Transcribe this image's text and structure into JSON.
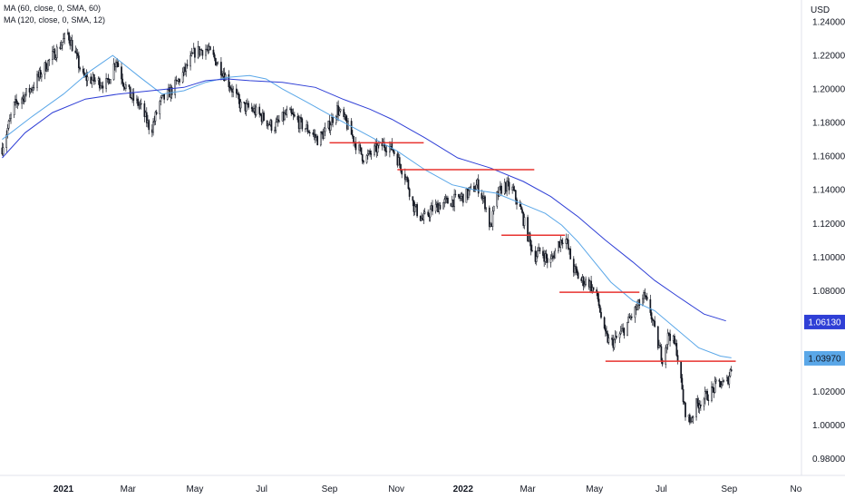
{
  "chart_data": {
    "type": "candlestick",
    "title": "",
    "currency": "USD",
    "legend": [
      {
        "label": "MA (60, close, 0, SMA, 60)",
        "color": "#5aa7e8"
      },
      {
        "label": "MA (120, close, 0, SMA, 12)",
        "color": "#2f3fd6"
      }
    ],
    "y_ticks": [
      "1.24000",
      "1.22000",
      "1.20000",
      "1.18000",
      "1.16000",
      "1.14000",
      "1.12000",
      "1.10000",
      "1.08000",
      "1.06000",
      "1.04000",
      "1.02000",
      "1.00000",
      "0.98000"
    ],
    "ylim": [
      0.97,
      1.253
    ],
    "x_ticks": [
      {
        "label": "2021",
        "bold": true,
        "t": 0
      },
      {
        "label": "Mar",
        "bold": false,
        "t": 59
      },
      {
        "label": "May",
        "bold": false,
        "t": 120
      },
      {
        "label": "Jul",
        "bold": false,
        "t": 181
      },
      {
        "label": "Sep",
        "bold": false,
        "t": 243
      },
      {
        "label": "Nov",
        "bold": false,
        "t": 304
      },
      {
        "label": "2022",
        "bold": true,
        "t": 365
      },
      {
        "label": "Mar",
        "bold": false,
        "t": 424
      },
      {
        "label": "May",
        "bold": false,
        "t": 485
      },
      {
        "label": "Jul",
        "bold": false,
        "t": 546
      },
      {
        "label": "Sep",
        "bold": false,
        "t": 608
      },
      {
        "label": "No",
        "bold": false,
        "t": 669
      }
    ],
    "price_path": [
      [
        -56,
        1.165
      ],
      [
        -45,
        1.19
      ],
      [
        -30,
        1.2
      ],
      [
        -15,
        1.215
      ],
      [
        -4,
        1.225
      ],
      [
        4,
        1.233
      ],
      [
        10,
        1.222
      ],
      [
        18,
        1.207
      ],
      [
        28,
        1.205
      ],
      [
        40,
        1.203
      ],
      [
        48,
        1.218
      ],
      [
        55,
        1.204
      ],
      [
        62,
        1.195
      ],
      [
        70,
        1.19
      ],
      [
        80,
        1.175
      ],
      [
        88,
        1.192
      ],
      [
        100,
        1.2
      ],
      [
        110,
        1.21
      ],
      [
        120,
        1.222
      ],
      [
        130,
        1.224
      ],
      [
        138,
        1.218
      ],
      [
        146,
        1.21
      ],
      [
        154,
        1.2
      ],
      [
        162,
        1.19
      ],
      [
        172,
        1.188
      ],
      [
        182,
        1.183
      ],
      [
        192,
        1.177
      ],
      [
        205,
        1.186
      ],
      [
        215,
        1.18
      ],
      [
        225,
        1.175
      ],
      [
        232,
        1.17
      ],
      [
        240,
        1.175
      ],
      [
        250,
        1.188
      ],
      [
        258,
        1.18
      ],
      [
        268,
        1.166
      ],
      [
        275,
        1.158
      ],
      [
        283,
        1.163
      ],
      [
        292,
        1.167
      ],
      [
        300,
        1.165
      ],
      [
        306,
        1.157
      ],
      [
        313,
        1.147
      ],
      [
        320,
        1.13
      ],
      [
        328,
        1.122
      ],
      [
        336,
        1.128
      ],
      [
        346,
        1.132
      ],
      [
        358,
        1.134
      ],
      [
        368,
        1.137
      ],
      [
        378,
        1.143
      ],
      [
        385,
        1.132
      ],
      [
        390,
        1.117
      ],
      [
        395,
        1.135
      ],
      [
        402,
        1.143
      ],
      [
        410,
        1.14
      ],
      [
        418,
        1.127
      ],
      [
        424,
        1.113
      ],
      [
        430,
        1.1
      ],
      [
        436,
        1.104
      ],
      [
        444,
        1.096
      ],
      [
        452,
        1.108
      ],
      [
        458,
        1.113
      ],
      [
        465,
        1.094
      ],
      [
        472,
        1.086
      ],
      [
        480,
        1.085
      ],
      [
        488,
        1.075
      ],
      [
        494,
        1.054
      ],
      [
        500,
        1.048
      ],
      [
        506,
        1.052
      ],
      [
        512,
        1.057
      ],
      [
        518,
        1.064
      ],
      [
        524,
        1.07
      ],
      [
        530,
        1.076
      ],
      [
        536,
        1.068
      ],
      [
        541,
        1.052
      ],
      [
        547,
        1.04
      ],
      [
        553,
        1.055
      ],
      [
        560,
        1.045
      ],
      [
        567,
        1.01
      ],
      [
        572,
        1.002
      ],
      [
        578,
        1.012
      ],
      [
        585,
        1.016
      ],
      [
        592,
        1.02
      ],
      [
        598,
        1.025
      ],
      [
        605,
        1.024
      ],
      [
        610,
        1.034
      ]
    ],
    "ma60_path": [
      [
        -56,
        1.17
      ],
      [
        -30,
        1.183
      ],
      [
        0,
        1.197
      ],
      [
        25,
        1.211
      ],
      [
        45,
        1.22
      ],
      [
        70,
        1.207
      ],
      [
        90,
        1.197
      ],
      [
        110,
        1.199
      ],
      [
        130,
        1.204
      ],
      [
        150,
        1.207
      ],
      [
        170,
        1.208
      ],
      [
        185,
        1.206
      ],
      [
        200,
        1.2
      ],
      [
        220,
        1.193
      ],
      [
        245,
        1.184
      ],
      [
        265,
        1.177
      ],
      [
        285,
        1.17
      ],
      [
        305,
        1.163
      ],
      [
        330,
        1.152
      ],
      [
        355,
        1.143
      ],
      [
        375,
        1.14
      ],
      [
        395,
        1.138
      ],
      [
        410,
        1.134
      ],
      [
        425,
        1.13
      ],
      [
        440,
        1.126
      ],
      [
        455,
        1.119
      ],
      [
        470,
        1.109
      ],
      [
        485,
        1.097
      ],
      [
        500,
        1.085
      ],
      [
        520,
        1.074
      ],
      [
        540,
        1.068
      ],
      [
        560,
        1.057
      ],
      [
        580,
        1.046
      ],
      [
        600,
        1.041
      ],
      [
        610,
        1.04
      ]
    ],
    "ma120_path": [
      [
        -56,
        1.159
      ],
      [
        -35,
        1.174
      ],
      [
        -10,
        1.186
      ],
      [
        20,
        1.194
      ],
      [
        50,
        1.197
      ],
      [
        80,
        1.199
      ],
      [
        110,
        1.201
      ],
      [
        130,
        1.205
      ],
      [
        150,
        1.206
      ],
      [
        170,
        1.205
      ],
      [
        200,
        1.204
      ],
      [
        230,
        1.201
      ],
      [
        255,
        1.194
      ],
      [
        280,
        1.188
      ],
      [
        300,
        1.182
      ],
      [
        330,
        1.171
      ],
      [
        360,
        1.159
      ],
      [
        390,
        1.153
      ],
      [
        420,
        1.145
      ],
      [
        445,
        1.136
      ],
      [
        470,
        1.124
      ],
      [
        495,
        1.11
      ],
      [
        520,
        1.097
      ],
      [
        540,
        1.086
      ],
      [
        560,
        1.077
      ],
      [
        585,
        1.066
      ],
      [
        605,
        1.062
      ]
    ],
    "resistance_lines": [
      {
        "t1": 243,
        "t2": 329,
        "y": 1.168
      },
      {
        "t1": 305,
        "t2": 430,
        "y": 1.152
      },
      {
        "t1": 400,
        "t2": 458,
        "y": 1.113
      },
      {
        "t1": 453,
        "t2": 526,
        "y": 1.079
      },
      {
        "t1": 495,
        "t2": 614,
        "y": 1.038
      }
    ],
    "price_badges": [
      {
        "value": "1.06130",
        "y": 1.0613,
        "bg": "#2f3fd6",
        "fg": "#ffffff"
      },
      {
        "value": "1.03970",
        "y": 1.0397,
        "bg": "#5aa7e8",
        "fg": "#131722"
      }
    ]
  }
}
